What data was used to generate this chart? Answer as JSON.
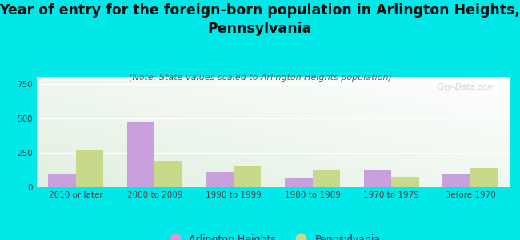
{
  "title": "Year of entry for the foreign-born population in Arlington Heights,\nPennsylvania",
  "subtitle": "(Note: State values scaled to Arlington Heights population)",
  "categories": [
    "2010 or later",
    "2000 to 2009",
    "1990 to 1999",
    "1980 to 1989",
    "1970 to 1979",
    "Before 1970"
  ],
  "arlington_values": [
    100,
    475,
    110,
    65,
    120,
    90
  ],
  "pennsylvania_values": [
    270,
    190,
    155,
    125,
    75,
    140
  ],
  "arlington_color": "#c9a0dc",
  "pennsylvania_color": "#c8d98a",
  "background_color": "#00e8e8",
  "ylim": [
    0,
    800
  ],
  "yticks": [
    0,
    250,
    500,
    750
  ],
  "title_fontsize": 12.5,
  "subtitle_fontsize": 8,
  "tick_fontsize": 7.5,
  "legend_fontsize": 9,
  "bar_width": 0.35,
  "watermark": "City-Data.com"
}
